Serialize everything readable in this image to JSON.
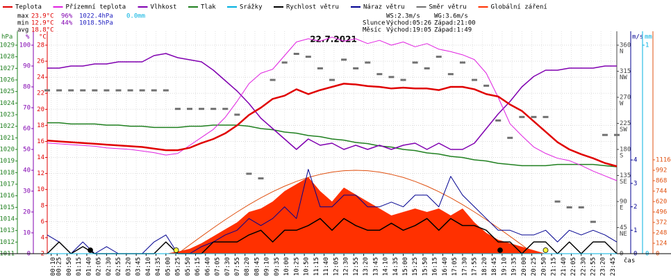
{
  "chart_data": {
    "type": "line",
    "title": "22.7.2021",
    "x_label": "čas",
    "xlim": [
      0,
      1440
    ],
    "x": [
      0,
      30,
      60,
      90,
      120,
      150,
      180,
      210,
      240,
      270,
      300,
      330,
      360,
      390,
      420,
      450,
      480,
      510,
      540,
      570,
      600,
      630,
      660,
      690,
      720,
      750,
      780,
      810,
      840,
      870,
      900,
      930,
      960,
      990,
      1020,
      1050,
      1080,
      1110,
      1140,
      1170,
      1200,
      1230,
      1260,
      1290,
      1320,
      1350,
      1380,
      1410,
      1440
    ],
    "xticks": [
      {
        "value": 10,
        "label": "00:10"
      },
      {
        "value": 25,
        "label": "00:25"
      },
      {
        "value": 50,
        "label": "00:50"
      },
      {
        "value": 75,
        "label": "01:15"
      },
      {
        "value": 100,
        "label": "01:40"
      },
      {
        "value": 125,
        "label": "02:05"
      },
      {
        "value": 150,
        "label": "02:30"
      },
      {
        "value": 175,
        "label": "02:55"
      },
      {
        "value": 200,
        "label": "03:20"
      },
      {
        "value": 225,
        "label": "03:45"
      },
      {
        "value": 250,
        "label": "04:10"
      },
      {
        "value": 275,
        "label": "04:35"
      },
      {
        "value": 300,
        "label": "05:00"
      },
      {
        "value": 325,
        "label": "05:25"
      },
      {
        "value": 350,
        "label": "05:50"
      },
      {
        "value": 375,
        "label": "06:15"
      },
      {
        "value": 400,
        "label": "06:40"
      },
      {
        "value": 425,
        "label": "07:05"
      },
      {
        "value": 450,
        "label": "07:30"
      },
      {
        "value": 475,
        "label": "07:55"
      },
      {
        "value": 500,
        "label": "08:20"
      },
      {
        "value": 525,
        "label": "08:45"
      },
      {
        "value": 550,
        "label": "09:10"
      },
      {
        "value": 575,
        "label": "09:35"
      },
      {
        "value": 600,
        "label": "10:00"
      },
      {
        "value": 625,
        "label": "10:25"
      },
      {
        "value": 650,
        "label": "10:50"
      },
      {
        "value": 675,
        "label": "11:15"
      },
      {
        "value": 700,
        "label": "11:40"
      },
      {
        "value": 725,
        "label": "12:05"
      },
      {
        "value": 750,
        "label": "12:30"
      },
      {
        "value": 775,
        "label": "12:55"
      },
      {
        "value": 800,
        "label": "13:20"
      },
      {
        "value": 825,
        "label": "13:45"
      },
      {
        "value": 850,
        "label": "14:10"
      },
      {
        "value": 875,
        "label": "14:35"
      },
      {
        "value": 900,
        "label": "15:00"
      },
      {
        "value": 925,
        "label": "15:25"
      },
      {
        "value": 950,
        "label": "15:50"
      },
      {
        "value": 975,
        "label": "16:15"
      },
      {
        "value": 1000,
        "label": "16:40"
      },
      {
        "value": 1025,
        "label": "17:05"
      },
      {
        "value": 1050,
        "label": "17:30"
      },
      {
        "value": 1075,
        "label": "17:55"
      },
      {
        "value": 1100,
        "label": "18:20"
      },
      {
        "value": 1125,
        "label": "18:45"
      },
      {
        "value": 1150,
        "label": "19:10"
      },
      {
        "value": 1175,
        "label": "19:35"
      },
      {
        "value": 1200,
        "label": "20:00"
      },
      {
        "value": 1225,
        "label": "20:25"
      },
      {
        "value": 1250,
        "label": "20:50"
      },
      {
        "value": 1275,
        "label": "21:15"
      },
      {
        "value": 1300,
        "label": "21:40"
      },
      {
        "value": 1325,
        "label": "22:05"
      },
      {
        "value": 1350,
        "label": "22:30"
      },
      {
        "value": 1375,
        "label": "22:55"
      },
      {
        "value": 1400,
        "label": "23:20"
      },
      {
        "value": 1425,
        "label": "23:45"
      }
    ],
    "axes": {
      "pres": {
        "label": "hPa",
        "color": "#208020",
        "lim": [
          1011,
          1029
        ],
        "ticks": [
          1011,
          1012,
          1013,
          1014,
          1015,
          1016,
          1017,
          1018,
          1019,
          1020,
          1021,
          1022,
          1023,
          1024,
          1025,
          1026,
          1027,
          1028,
          1029
        ]
      },
      "hum": {
        "label": "%",
        "color": "#8000b0",
        "lim": [
          0,
          100
        ],
        "ticks": [
          0,
          10,
          20,
          30,
          40,
          50,
          60,
          70,
          80,
          90,
          100
        ]
      },
      "temp": {
        "label": "°C",
        "color": "#e00000",
        "lim": [
          2,
          28
        ],
        "ticks": [
          2,
          4,
          6,
          8,
          10,
          12,
          14,
          16,
          18,
          20,
          22,
          24,
          26,
          28
        ]
      },
      "dir": {
        "color": "#444444",
        "lim": [
          0,
          360
        ],
        "ticks": [
          0,
          45,
          90,
          135,
          180,
          225,
          270,
          315,
          360
        ],
        "compass": [
          null,
          "NE",
          "E",
          "SE",
          "S",
          "SW",
          "W",
          "NW",
          "N"
        ]
      },
      "wind": {
        "label": "m/s",
        "color": "#000090",
        "lim": [
          0,
          8.9
        ],
        "ticks": [
          0,
          1,
          2,
          3,
          4
        ]
      },
      "mm": {
        "label": "mm",
        "color": "#00b0e0",
        "lim": [
          0,
          1
        ],
        "ticks": [
          0,
          1
        ]
      },
      "rad": {
        "color": "#e05010",
        "lim": [
          0,
          2480
        ],
        "ticks": [
          0,
          124,
          248,
          372,
          496,
          620,
          744,
          868,
          992,
          1116
        ]
      }
    },
    "series": [
      {
        "name": "Teplota",
        "color": "#e00000",
        "axis": "temp",
        "kind": "line",
        "width": 2.5,
        "values": [
          16.1,
          16.0,
          15.9,
          15.8,
          15.7,
          15.6,
          15.5,
          15.4,
          15.3,
          15.1,
          14.9,
          14.9,
          15.2,
          15.8,
          16.3,
          17.0,
          18.0,
          19.3,
          20.2,
          21.3,
          21.7,
          22.5,
          21.9,
          22.4,
          22.8,
          23.2,
          23.1,
          22.9,
          22.8,
          22.6,
          22.7,
          22.6,
          22.6,
          22.4,
          22.8,
          22.8,
          22.5,
          21.9,
          21.6,
          20.6,
          19.8,
          18.5,
          17.2,
          15.9,
          15.0,
          14.4,
          13.9,
          13.3,
          12.9
        ]
      },
      {
        "name": "Přízemní teplota",
        "color": "#e020e0",
        "axis": "temp",
        "kind": "line",
        "width": 1,
        "values": [
          15.8,
          15.7,
          15.6,
          15.5,
          15.4,
          15.2,
          15.1,
          15.0,
          14.8,
          14.6,
          14.3,
          14.5,
          15.5,
          16.5,
          17.5,
          19.0,
          21.0,
          23.2,
          24.5,
          25.0,
          26.7,
          28.4,
          28.8,
          28.5,
          29.0,
          28.5,
          28.8,
          28.2,
          28.6,
          28.0,
          28.4,
          27.8,
          28.2,
          27.5,
          27.2,
          26.8,
          26.2,
          24.5,
          21.5,
          18.2,
          16.7,
          15.3,
          14.5,
          13.9,
          13.6,
          13.0,
          12.3,
          11.7,
          11.1
        ]
      },
      {
        "name": "Vlhkost",
        "color": "#8000b0",
        "axis": "hum",
        "kind": "line",
        "width": 1.5,
        "values": [
          89,
          89,
          90,
          90,
          91,
          91,
          92,
          92,
          92,
          95,
          96,
          94,
          93,
          92,
          88,
          83,
          78,
          72,
          65,
          60,
          55,
          50,
          55,
          52,
          53,
          50,
          52,
          50,
          52,
          50,
          52,
          53,
          50,
          53,
          50,
          50,
          53,
          60,
          67,
          73,
          80,
          85,
          88,
          88,
          89,
          89,
          89,
          90,
          90
        ]
      },
      {
        "name": "Tlak",
        "color": "#208020",
        "axis": "pres",
        "kind": "line",
        "width": 1.5,
        "values": [
          1022.3,
          1022.3,
          1022.2,
          1022.2,
          1022.2,
          1022.1,
          1022.1,
          1022.0,
          1022.0,
          1021.9,
          1021.9,
          1021.9,
          1022.0,
          1022.0,
          1022.1,
          1022.1,
          1022.1,
          1022.0,
          1021.8,
          1021.7,
          1021.5,
          1021.4,
          1021.2,
          1021.1,
          1020.9,
          1020.8,
          1020.6,
          1020.5,
          1020.3,
          1020.2,
          1020.0,
          1019.9,
          1019.7,
          1019.6,
          1019.4,
          1019.3,
          1019.1,
          1019.0,
          1018.8,
          1018.7,
          1018.6,
          1018.6,
          1018.6,
          1018.7,
          1018.7,
          1018.7,
          1018.7,
          1018.6,
          1018.5
        ]
      },
      {
        "name": "Srážky",
        "color": "#00b0e0",
        "axis": "mm",
        "kind": "line",
        "width": 1,
        "values": [
          0,
          0,
          0,
          0,
          0,
          0,
          0,
          0,
          0,
          0,
          0,
          0,
          0,
          0,
          0,
          0,
          0,
          0,
          0,
          0,
          0,
          0,
          0,
          0,
          0,
          0,
          0,
          0,
          0,
          0,
          0,
          0,
          0,
          0,
          0,
          0,
          0,
          0,
          0,
          0,
          0,
          0,
          0,
          0,
          0,
          0,
          0,
          0,
          0
        ]
      },
      {
        "name": "Rychlost větru",
        "color": "#000000",
        "axis": "wind",
        "kind": "line",
        "width": 1.5,
        "values": [
          0,
          0.5,
          0,
          0.3,
          0,
          0,
          0,
          0,
          0,
          0,
          0.5,
          0,
          0,
          0,
          0.5,
          0.5,
          0.5,
          0.8,
          1,
          0.5,
          1,
          1,
          1.2,
          1.5,
          1,
          1.5,
          1.2,
          1,
          1,
          1.3,
          1,
          1.2,
          1.5,
          1,
          1.5,
          1.2,
          1.2,
          1,
          0.5,
          0.5,
          0,
          0.5,
          0.5,
          0,
          0.5,
          0,
          0.5,
          0.5,
          0
        ]
      },
      {
        "name": "Náraz větru",
        "color": "#000090",
        "axis": "wind",
        "kind": "line",
        "width": 1,
        "values": [
          0.8,
          0.5,
          0,
          0.5,
          0,
          0.3,
          0,
          0,
          0,
          0.5,
          0.8,
          0,
          0,
          0.3,
          0.5,
          0.8,
          1,
          1.5,
          1.2,
          1.5,
          2,
          1.5,
          3.6,
          2,
          2,
          2.5,
          2.5,
          2,
          2,
          2.2,
          2,
          2.5,
          2.5,
          2,
          3.3,
          2.5,
          2,
          1.5,
          1,
          1,
          0.8,
          0.8,
          1,
          0.5,
          1,
          0.8,
          1,
          0.8,
          0.5
        ]
      },
      {
        "name": "Směr větru",
        "color": "#707070",
        "axis": "dir",
        "kind": "dash",
        "values": [
          282,
          282,
          282,
          282,
          282,
          282,
          282,
          282,
          282,
          282,
          282,
          250,
          250,
          250,
          250,
          250,
          240,
          138,
          130,
          300,
          330,
          345,
          340,
          320,
          300,
          335,
          320,
          330,
          310,
          305,
          300,
          330,
          320,
          340,
          310,
          330,
          300,
          290,
          230,
          200,
          236,
          236,
          236,
          90,
          80,
          80,
          55,
          205,
          205
        ]
      },
      {
        "name": "Globální záření",
        "color": "#ff3000",
        "axis": "rad",
        "kind": "area",
        "values": [
          0,
          0,
          0,
          0,
          0,
          0,
          0,
          0,
          0,
          0,
          0,
          25,
          58,
          124,
          207,
          290,
          372,
          496,
          537,
          620,
          744,
          827,
          910,
          744,
          620,
          786,
          703,
          620,
          537,
          455,
          496,
          537,
          496,
          537,
          455,
          537,
          372,
          248,
          165,
          124,
          83,
          41,
          0,
          0,
          0,
          0,
          0,
          0,
          0
        ]
      },
      {
        "color": "#e05010",
        "axis": "rad",
        "kind": "line",
        "width": 1,
        "values": [
          null,
          null,
          null,
          null,
          null,
          null,
          null,
          null,
          null,
          null,
          null,
          0,
          104,
          206,
          307,
          404,
          496,
          583,
          664,
          737,
          803,
          859,
          907,
          943,
          970,
          987,
          992,
          987,
          970,
          943,
          907,
          859,
          803,
          737,
          664,
          583,
          496,
          404,
          307,
          206,
          104,
          0,
          null,
          null,
          null,
          null,
          null,
          null,
          null
        ]
      }
    ],
    "events": [
      {
        "x": 326,
        "color": "#ffff40"
      },
      {
        "x": 1260,
        "color": "#ffff40"
      },
      {
        "x": 109,
        "color": "#000000"
      },
      {
        "x": 1145,
        "color": "#000000"
      }
    ],
    "stats": [
      {
        "label": "max",
        "temp": "23.9°C",
        "hum": "96%",
        "pres": "1022.4hPa",
        "rain": "0.0mm"
      },
      {
        "label": "min",
        "temp": "12.9°C",
        "hum": "44%",
        "pres": "1018.5hPa"
      },
      {
        "label": "avg",
        "temp": "18.8°C"
      }
    ],
    "info": {
      "ws": "WS:2.3m/s",
      "wg": "WG:3.6m/s",
      "sun": {
        "name": "Slunce",
        "rise": "Východ:05:26",
        "set": "Západ:21:00"
      },
      "moon": {
        "name": "Měsíc",
        "rise": "Východ:19:05",
        "set": "Západ:1:49"
      }
    }
  }
}
